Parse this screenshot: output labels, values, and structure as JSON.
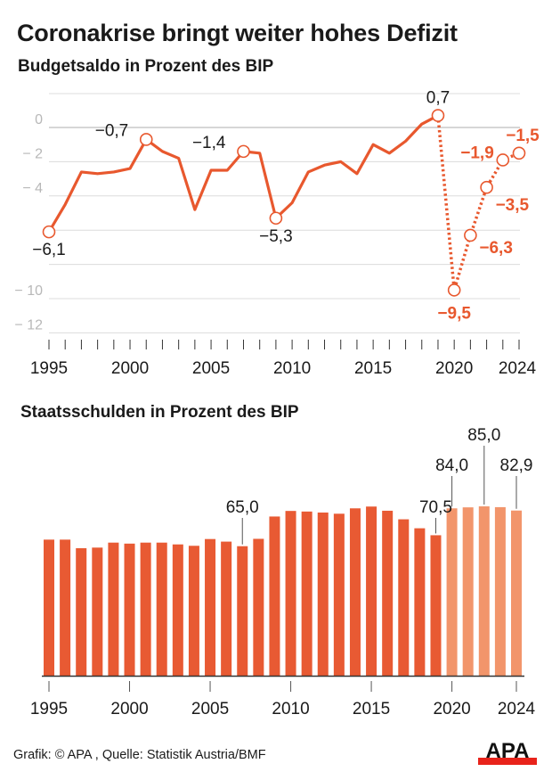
{
  "header": {
    "title": "Coronakrise bringt weiter hohes Defizit"
  },
  "footer": {
    "credit": "Grafik: © APA , Quelle: Statistik Austria/BMF",
    "logo_text": "APA"
  },
  "colors": {
    "line": "#e8582e",
    "bar": "#e85a33",
    "bar_forecast": "#f2956b",
    "grid": "#dcdcdc",
    "axis_label": "#b8b8b8",
    "text": "#1a1a1a",
    "logo_red": "#e8231b"
  },
  "chart_data": [
    {
      "type": "line",
      "title": "Budgetsaldo in Prozent des BIP",
      "xlabel": "",
      "ylabel": "",
      "x": [
        1995,
        1996,
        1997,
        1998,
        1999,
        2000,
        2001,
        2002,
        2003,
        2004,
        2005,
        2006,
        2007,
        2008,
        2009,
        2010,
        2011,
        2012,
        2013,
        2014,
        2015,
        2016,
        2017,
        2018,
        2019,
        2020,
        2021,
        2022,
        2023,
        2024
      ],
      "values": [
        -6.1,
        -4.5,
        -2.6,
        -2.7,
        -2.6,
        -2.4,
        -0.7,
        -1.4,
        -1.8,
        -4.8,
        -2.5,
        -2.5,
        -1.4,
        -1.5,
        -5.3,
        -4.4,
        -2.6,
        -2.2,
        -2.0,
        -2.7,
        -1.0,
        -1.5,
        -0.8,
        0.2,
        0.7,
        -9.5,
        -6.3,
        -3.5,
        -1.9,
        -1.5
      ],
      "forecast_from": 2019,
      "ylim": [
        -13,
        2
      ],
      "yticks": [
        0,
        -2,
        -4,
        -6,
        -8,
        -10,
        -12
      ],
      "ytick_labels": [
        "0",
        "− 2",
        "− 4",
        "",
        "",
        "− 10",
        "− 12"
      ],
      "xtick_labels": [
        "1995",
        "2000",
        "2005",
        "2010",
        "2015",
        "2020",
        "2024"
      ],
      "xtick_label_years": [
        1995,
        2000,
        2005,
        2010,
        2015,
        2020,
        2024
      ],
      "grid": true,
      "annotations": [
        {
          "year": 1995,
          "text": "−6,1",
          "pos": "below",
          "style": "normal"
        },
        {
          "year": 2001,
          "text": "−0,7",
          "pos": "left",
          "style": "normal"
        },
        {
          "year": 2007,
          "text": "−1,4",
          "pos": "left",
          "style": "normal"
        },
        {
          "year": 2009,
          "text": "−5,3",
          "pos": "below",
          "style": "normal"
        },
        {
          "year": 2019,
          "text": "0,7",
          "pos": "above",
          "style": "normal"
        },
        {
          "year": 2020,
          "text": "−9,5",
          "pos": "below",
          "style": "forecast"
        },
        {
          "year": 2021,
          "text": "−6,3",
          "pos": "right",
          "style": "forecast"
        },
        {
          "year": 2022,
          "text": "−3,5",
          "pos": "right-below",
          "style": "forecast"
        },
        {
          "year": 2023,
          "text": "−1,9",
          "pos": "left",
          "style": "forecast"
        },
        {
          "year": 2024,
          "text": "−1,5",
          "pos": "above",
          "style": "forecast"
        }
      ]
    },
    {
      "type": "bar",
      "title": "Staatsschulden in Prozent des BIP",
      "xlabel": "",
      "ylabel": "",
      "categories": [
        1995,
        1996,
        1997,
        1998,
        1999,
        2000,
        2001,
        2002,
        2003,
        2004,
        2005,
        2006,
        2007,
        2008,
        2009,
        2010,
        2011,
        2012,
        2013,
        2014,
        2015,
        2016,
        2017,
        2018,
        2019,
        2020,
        2021,
        2022,
        2023,
        2024
      ],
      "values": [
        68.3,
        68.3,
        64.0,
        64.3,
        66.8,
        66.3,
        66.8,
        66.8,
        65.9,
        65.2,
        68.6,
        67.3,
        65.0,
        68.7,
        79.9,
        82.7,
        82.4,
        81.9,
        81.3,
        84.0,
        84.9,
        82.8,
        78.5,
        74.0,
        70.5,
        84.0,
        84.5,
        85.0,
        84.6,
        82.9
      ],
      "forecast_from": 2020,
      "ylim": [
        0,
        100
      ],
      "xtick_labels": [
        "1995",
        "2000",
        "2005",
        "2010",
        "2015",
        "2020",
        "2024"
      ],
      "xtick_label_years": [
        1995,
        2000,
        2005,
        2010,
        2015,
        2020,
        2024
      ],
      "grid": false,
      "annotations": [
        {
          "year": 2007,
          "text": "65,0",
          "level": 1
        },
        {
          "year": 2019,
          "text": "70,5",
          "level": 1
        },
        {
          "year": 2020,
          "text": "84,0",
          "level": 2
        },
        {
          "year": 2022,
          "text": "85,0",
          "level": 3
        },
        {
          "year": 2024,
          "text": "82,9",
          "level": 2
        }
      ]
    }
  ]
}
